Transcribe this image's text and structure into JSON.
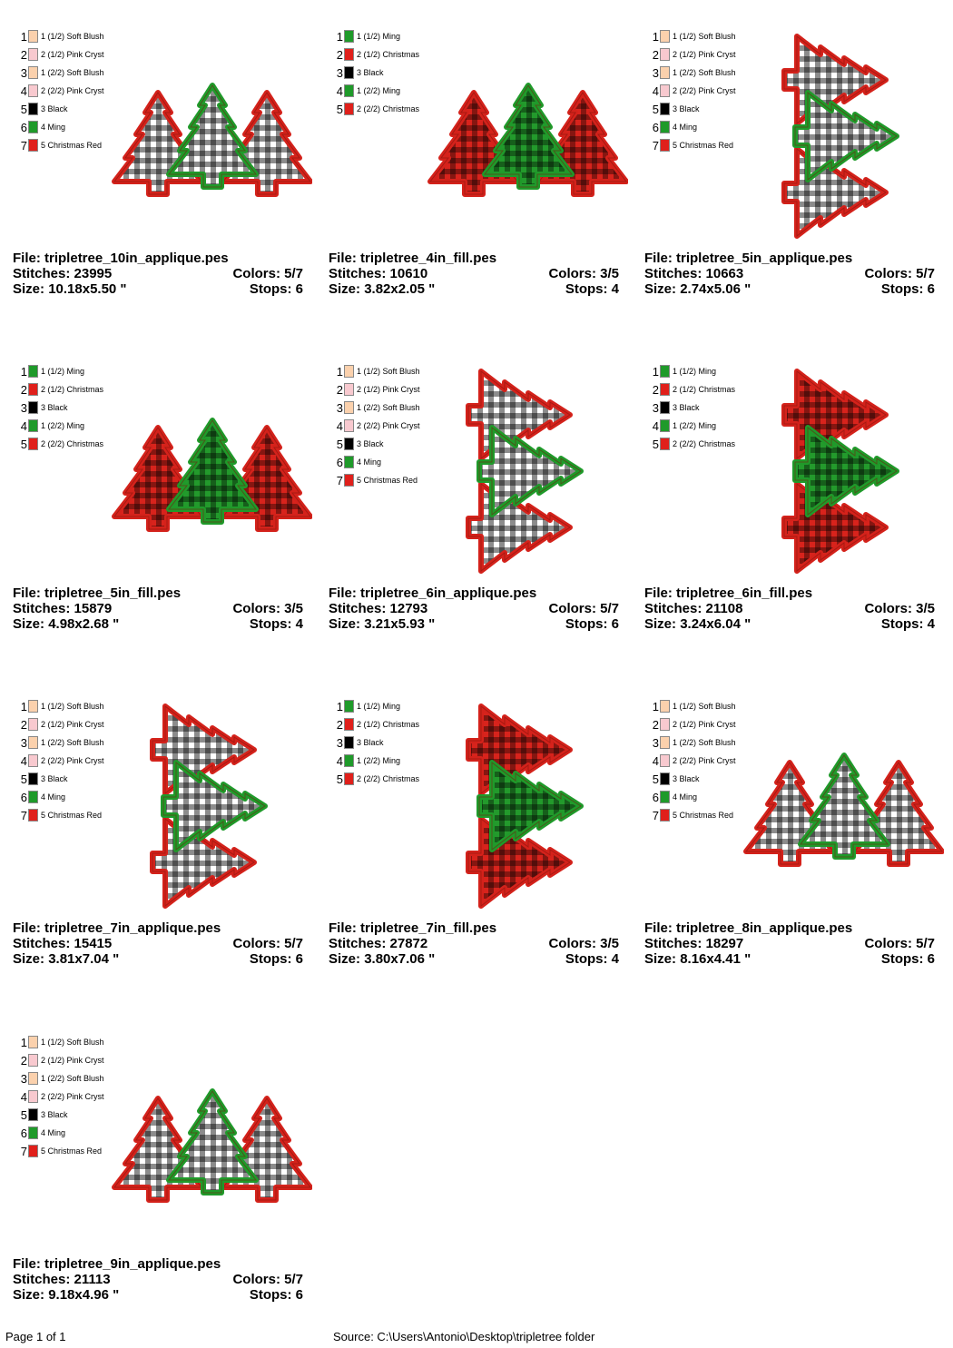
{
  "colors": {
    "Soft Blush": "#fbd1ad",
    "Pink Cryst": "#f8c9cf",
    "Black": "#000000",
    "Ming": "#1f9a2a",
    "Christmas": "#e0201b",
    "Christmas Red": "#e0201b"
  },
  "cards": [
    {
      "file_label": "File:",
      "file": "tripletree_10in_applique.pes",
      "stitches_label": "Stitches:",
      "stitches": "23995",
      "colors_label": "Colors:",
      "colors": "5/7",
      "size_label": "Size:",
      "size": "10.18x5.50 \"",
      "stops_label": "Stops:",
      "stops": "6",
      "style": "applique",
      "orientation": "horizontal",
      "legend": [
        {
          "num": "1",
          "label": "1 (1/2) Soft Blush",
          "color": "#fbd1ad"
        },
        {
          "num": "2",
          "label": "2 (1/2) Pink Cryst",
          "color": "#f8c9cf"
        },
        {
          "num": "3",
          "label": "1 (2/2) Soft Blush",
          "color": "#fbd1ad"
        },
        {
          "num": "4",
          "label": "2 (2/2) Pink Cryst",
          "color": "#f8c9cf"
        },
        {
          "num": "5",
          "label": "3 Black",
          "color": "#000000"
        },
        {
          "num": "6",
          "label": "4 Ming",
          "color": "#1f9a2a"
        },
        {
          "num": "7",
          "label": "5 Christmas Red",
          "color": "#e0201b"
        }
      ]
    },
    {
      "file_label": "File:",
      "file": "tripletree_4in_fill.pes",
      "stitches_label": "Stitches:",
      "stitches": "10610",
      "colors_label": "Colors:",
      "colors": "3/5",
      "size_label": "Size:",
      "size": "3.82x2.05 \"",
      "stops_label": "Stops:",
      "stops": "4",
      "style": "fill",
      "orientation": "horizontal",
      "legend": [
        {
          "num": "1",
          "label": "1 (1/2) Ming",
          "color": "#1f9a2a"
        },
        {
          "num": "2",
          "label": "2 (1/2) Christmas",
          "color": "#e0201b"
        },
        {
          "num": "3",
          "label": "3 Black",
          "color": "#000000"
        },
        {
          "num": "4",
          "label": "1 (2/2) Ming",
          "color": "#1f9a2a"
        },
        {
          "num": "5",
          "label": "2 (2/2) Christmas",
          "color": "#e0201b"
        }
      ]
    },
    {
      "file_label": "File:",
      "file": "tripletree_5in_applique.pes",
      "stitches_label": "Stitches:",
      "stitches": "10663",
      "colors_label": "Colors:",
      "colors": "5/7",
      "size_label": "Size:",
      "size": "2.74x5.06 \"",
      "stops_label": "Stops:",
      "stops": "6",
      "style": "applique",
      "orientation": "vertical",
      "legend": [
        {
          "num": "1",
          "label": "1 (1/2) Soft Blush",
          "color": "#fbd1ad"
        },
        {
          "num": "2",
          "label": "2 (1/2) Pink Cryst",
          "color": "#f8c9cf"
        },
        {
          "num": "3",
          "label": "1 (2/2) Soft Blush",
          "color": "#fbd1ad"
        },
        {
          "num": "4",
          "label": "2 (2/2) Pink Cryst",
          "color": "#f8c9cf"
        },
        {
          "num": "5",
          "label": "3 Black",
          "color": "#000000"
        },
        {
          "num": "6",
          "label": "4 Ming",
          "color": "#1f9a2a"
        },
        {
          "num": "7",
          "label": "5 Christmas Red",
          "color": "#e0201b"
        }
      ]
    },
    {
      "file_label": "File:",
      "file": "tripletree_5in_fill.pes",
      "stitches_label": "Stitches:",
      "stitches": "15879",
      "colors_label": "Colors:",
      "colors": "3/5",
      "size_label": "Size:",
      "size": "4.98x2.68 \"",
      "stops_label": "Stops:",
      "stops": "4",
      "style": "fill",
      "orientation": "horizontal",
      "legend": [
        {
          "num": "1",
          "label": "1 (1/2) Ming",
          "color": "#1f9a2a"
        },
        {
          "num": "2",
          "label": "2 (1/2) Christmas",
          "color": "#e0201b"
        },
        {
          "num": "3",
          "label": "3 Black",
          "color": "#000000"
        },
        {
          "num": "4",
          "label": "1 (2/2) Ming",
          "color": "#1f9a2a"
        },
        {
          "num": "5",
          "label": "2 (2/2) Christmas",
          "color": "#e0201b"
        }
      ]
    },
    {
      "file_label": "File:",
      "file": "tripletree_6in_applique.pes",
      "stitches_label": "Stitches:",
      "stitches": "12793",
      "colors_label": "Colors:",
      "colors": "5/7",
      "size_label": "Size:",
      "size": "3.21x5.93 \"",
      "stops_label": "Stops:",
      "stops": "6",
      "style": "applique",
      "orientation": "vertical",
      "legend": [
        {
          "num": "1",
          "label": "1 (1/2) Soft Blush",
          "color": "#fbd1ad"
        },
        {
          "num": "2",
          "label": "2 (1/2) Pink Cryst",
          "color": "#f8c9cf"
        },
        {
          "num": "3",
          "label": "1 (2/2) Soft Blush",
          "color": "#fbd1ad"
        },
        {
          "num": "4",
          "label": "2 (2/2) Pink Cryst",
          "color": "#f8c9cf"
        },
        {
          "num": "5",
          "label": "3 Black",
          "color": "#000000"
        },
        {
          "num": "6",
          "label": "4 Ming",
          "color": "#1f9a2a"
        },
        {
          "num": "7",
          "label": "5 Christmas Red",
          "color": "#e0201b"
        }
      ]
    },
    {
      "file_label": "File:",
      "file": "tripletree_6in_fill.pes",
      "stitches_label": "Stitches:",
      "stitches": "21108",
      "colors_label": "Colors:",
      "colors": "3/5",
      "size_label": "Size:",
      "size": "3.24x6.04 \"",
      "stops_label": "Stops:",
      "stops": "4",
      "style": "fill",
      "orientation": "vertical",
      "legend": [
        {
          "num": "1",
          "label": "1 (1/2) Ming",
          "color": "#1f9a2a"
        },
        {
          "num": "2",
          "label": "2 (1/2) Christmas",
          "color": "#e0201b"
        },
        {
          "num": "3",
          "label": "3 Black",
          "color": "#000000"
        },
        {
          "num": "4",
          "label": "1 (2/2) Ming",
          "color": "#1f9a2a"
        },
        {
          "num": "5",
          "label": "2 (2/2) Christmas",
          "color": "#e0201b"
        }
      ]
    },
    {
      "file_label": "File:",
      "file": "tripletree_7in_applique.pes",
      "stitches_label": "Stitches:",
      "stitches": "15415",
      "colors_label": "Colors:",
      "colors": "5/7",
      "size_label": "Size:",
      "size": "3.81x7.04 \"",
      "stops_label": "Stops:",
      "stops": "6",
      "style": "applique",
      "orientation": "vertical",
      "legend": [
        {
          "num": "1",
          "label": "1 (1/2) Soft Blush",
          "color": "#fbd1ad"
        },
        {
          "num": "2",
          "label": "2 (1/2) Pink Cryst",
          "color": "#f8c9cf"
        },
        {
          "num": "3",
          "label": "1 (2/2) Soft Blush",
          "color": "#fbd1ad"
        },
        {
          "num": "4",
          "label": "2 (2/2) Pink Cryst",
          "color": "#f8c9cf"
        },
        {
          "num": "5",
          "label": "3 Black",
          "color": "#000000"
        },
        {
          "num": "6",
          "label": "4 Ming",
          "color": "#1f9a2a"
        },
        {
          "num": "7",
          "label": "5 Christmas Red",
          "color": "#e0201b"
        }
      ]
    },
    {
      "file_label": "File:",
      "file": "tripletree_7in_fill.pes",
      "stitches_label": "Stitches:",
      "stitches": "27872",
      "colors_label": "Colors:",
      "colors": "3/5",
      "size_label": "Size:",
      "size": "3.80x7.06 \"",
      "stops_label": "Stops:",
      "stops": "4",
      "style": "fill",
      "orientation": "vertical",
      "legend": [
        {
          "num": "1",
          "label": "1 (1/2) Ming",
          "color": "#1f9a2a"
        },
        {
          "num": "2",
          "label": "2 (1/2) Christmas",
          "color": "#e0201b"
        },
        {
          "num": "3",
          "label": "3 Black",
          "color": "#000000"
        },
        {
          "num": "4",
          "label": "1 (2/2) Ming",
          "color": "#1f9a2a"
        },
        {
          "num": "5",
          "label": "2 (2/2) Christmas",
          "color": "#e0201b"
        }
      ]
    },
    {
      "file_label": "File:",
      "file": "tripletree_8in_applique.pes",
      "stitches_label": "Stitches:",
      "stitches": "18297",
      "colors_label": "Colors:",
      "colors": "5/7",
      "size_label": "Size:",
      "size": "8.16x4.41 \"",
      "stops_label": "Stops:",
      "stops": "6",
      "style": "applique",
      "orientation": "horizontal",
      "legend": [
        {
          "num": "1",
          "label": "1 (1/2) Soft Blush",
          "color": "#fbd1ad"
        },
        {
          "num": "2",
          "label": "2 (1/2) Pink Cryst",
          "color": "#f8c9cf"
        },
        {
          "num": "3",
          "label": "1 (2/2) Soft Blush",
          "color": "#fbd1ad"
        },
        {
          "num": "4",
          "label": "2 (2/2) Pink Cryst",
          "color": "#f8c9cf"
        },
        {
          "num": "5",
          "label": "3 Black",
          "color": "#000000"
        },
        {
          "num": "6",
          "label": "4 Ming",
          "color": "#1f9a2a"
        },
        {
          "num": "7",
          "label": "5 Christmas Red",
          "color": "#e0201b"
        }
      ]
    },
    {
      "file_label": "File:",
      "file": "tripletree_9in_applique.pes",
      "stitches_label": "Stitches:",
      "stitches": "21113",
      "colors_label": "Colors:",
      "colors": "5/7",
      "size_label": "Size:",
      "size": "9.18x4.96 \"",
      "stops_label": "Stops:",
      "stops": "6",
      "style": "applique",
      "orientation": "horizontal",
      "legend": [
        {
          "num": "1",
          "label": "1 (1/2) Soft Blush",
          "color": "#fbd1ad"
        },
        {
          "num": "2",
          "label": "2 (1/2) Pink Cryst",
          "color": "#f8c9cf"
        },
        {
          "num": "3",
          "label": "1 (2/2) Soft Blush",
          "color": "#fbd1ad"
        },
        {
          "num": "4",
          "label": "2 (2/2) Pink Cryst",
          "color": "#f8c9cf"
        },
        {
          "num": "5",
          "label": "3 Black",
          "color": "#000000"
        },
        {
          "num": "6",
          "label": "4 Ming",
          "color": "#1f9a2a"
        },
        {
          "num": "7",
          "label": "5 Christmas Red",
          "color": "#e0201b"
        }
      ]
    }
  ],
  "footer": {
    "page": "Page 1 of 1",
    "source": "Source: C:\\Users\\Antonio\\Desktop\\tripletree folder"
  }
}
